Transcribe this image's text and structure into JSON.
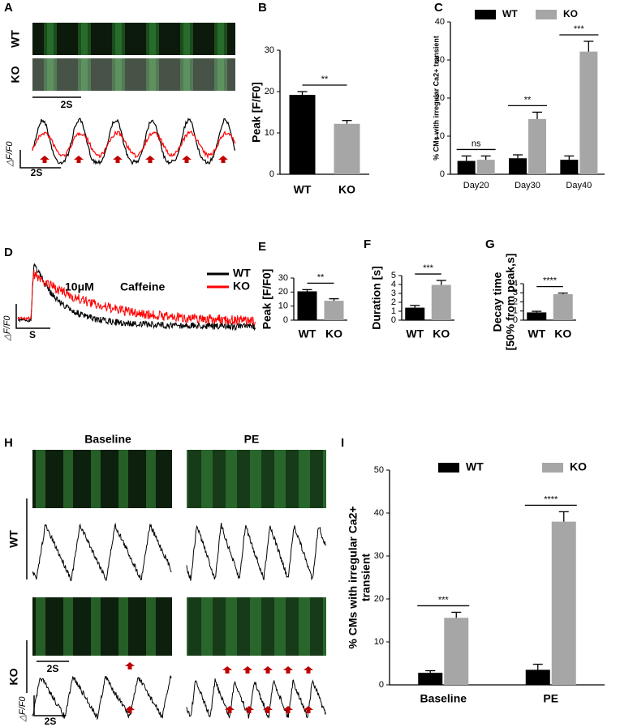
{
  "panel_labels": [
    "A",
    "B",
    "C",
    "D",
    "E",
    "F",
    "G",
    "H",
    "I"
  ],
  "panel_a": {
    "wt": "WT",
    "ko": "KO",
    "scan_scale": "2S",
    "trace_scale": "2S",
    "trace_unit": "△F/F0"
  },
  "panel_d": {
    "legend": [
      {
        "name": "WT",
        "color": "#000000"
      },
      {
        "name": "KO",
        "color": "#ff0000"
      }
    ],
    "dose": "10μM",
    "drug": "Caffeine",
    "time_scale": "S",
    "trace_unit": "△F/F0"
  },
  "panel_h": {
    "baseline": "Baseline",
    "pe": "PE",
    "wt": "WT",
    "ko": "KO",
    "scan_scale": "2S",
    "trace_scale": "2S",
    "trace_unit": "△F/F0"
  },
  "chart_data": [
    {
      "type": "bar",
      "ylabel": "Peak [F/F0]",
      "categories": [
        "WT",
        "KO"
      ],
      "values": [
        19.2,
        12.2
      ],
      "errors": [
        0.8,
        0.8
      ],
      "colors": [
        "#000000",
        "#a6a6a6"
      ],
      "ylim": [
        0,
        30
      ],
      "yticks": [
        0,
        10,
        20,
        30
      ],
      "significance": [
        "**"
      ]
    },
    {
      "type": "grouped-bar",
      "ylabel": "% CMs with irregular Ca2+ transient",
      "categories": [
        "Day20",
        "Day30",
        "Day40"
      ],
      "series": [
        {
          "name": "WT",
          "color": "#000000",
          "values": [
            3.5,
            4.2,
            3.8
          ],
          "errors": [
            1.3,
            0.9,
            1.0
          ]
        },
        {
          "name": "KO",
          "color": "#a6a6a6",
          "values": [
            3.8,
            14.5,
            32.2
          ],
          "errors": [
            1.0,
            1.8,
            2.7
          ]
        }
      ],
      "ylim": [
        0,
        40
      ],
      "yticks": [
        0,
        10,
        20,
        30,
        40
      ],
      "significance": [
        "ns",
        "**",
        "***"
      ]
    },
    {
      "type": "bar",
      "ylabel": "Peak [F/F0]",
      "categories": [
        "WT",
        "KO"
      ],
      "values": [
        20.5,
        13.8
      ],
      "errors": [
        1.2,
        1.4
      ],
      "colors": [
        "#000000",
        "#a6a6a6"
      ],
      "ylim": [
        0,
        30
      ],
      "yticks": [
        0,
        10,
        20,
        30
      ],
      "significance": [
        "**"
      ]
    },
    {
      "type": "bar",
      "ylabel": "Duration [s]",
      "categories": [
        "WT",
        "KO"
      ],
      "values": [
        1.4,
        3.95
      ],
      "errors": [
        0.25,
        0.5
      ],
      "colors": [
        "#000000",
        "#a6a6a6"
      ],
      "ylim": [
        0,
        5
      ],
      "yticks": [
        0,
        1,
        2,
        3,
        4,
        5
      ],
      "significance": [
        "***"
      ]
    },
    {
      "type": "bar",
      "ylabel": [
        "Decay time",
        "[50% from peak,s]"
      ],
      "categories": [
        "WT",
        "KO"
      ],
      "values": [
        0.85,
        2.85
      ],
      "errors": [
        0.12,
        0.12
      ],
      "colors": [
        "#000000",
        "#a6a6a6"
      ],
      "ylim": [
        0,
        4
      ],
      "yticks": [
        0,
        1,
        2,
        3,
        4
      ],
      "significance": [
        "****"
      ]
    },
    {
      "type": "grouped-bar",
      "ylabel": [
        "% CMs with irregular Ca2+",
        "transient"
      ],
      "categories": [
        "Baseline",
        "PE"
      ],
      "series": [
        {
          "name": "WT",
          "color": "#000000",
          "values": [
            2.8,
            3.5
          ],
          "errors": [
            0.5,
            1.3
          ]
        },
        {
          "name": "KO",
          "color": "#a6a6a6",
          "values": [
            15.6,
            38
          ],
          "errors": [
            1.3,
            2.3
          ]
        }
      ],
      "ylim": [
        0,
        50
      ],
      "yticks": [
        0,
        10,
        20,
        30,
        40,
        50
      ],
      "significance": [
        "***",
        "****"
      ]
    }
  ]
}
